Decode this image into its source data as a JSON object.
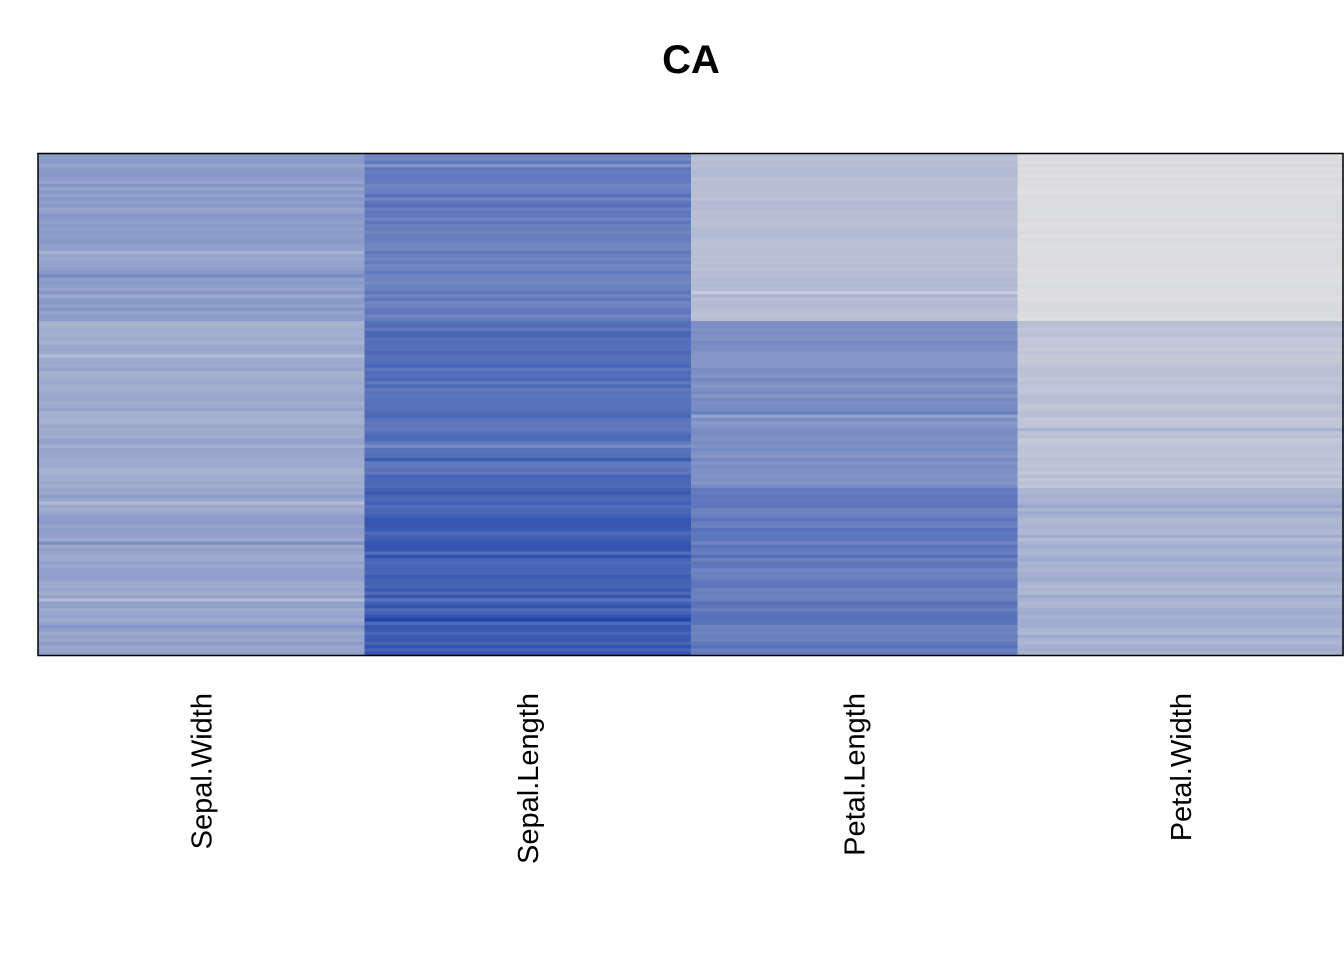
{
  "chart_data": {
    "type": "heatmap",
    "title": "CA",
    "columns": [
      "Sepal.Width",
      "Sepal.Length",
      "Petal.Length",
      "Petal.Width"
    ],
    "n_rows": 150,
    "color_low": "#e0e0e0",
    "color_high": "#1f44ab",
    "value_range": [
      0,
      1
    ],
    "column_profiles": [
      {
        "name": "Sepal.Width",
        "segments": [
          {
            "rows": [
              0,
              49
            ],
            "mean": 0.42,
            "jitter": 0.06
          },
          {
            "rows": [
              50,
              99
            ],
            "mean": 0.34,
            "jitter": 0.05
          },
          {
            "rows": [
              100,
              149
            ],
            "mean": 0.38,
            "jitter": 0.06
          }
        ]
      },
      {
        "name": "Sepal.Length",
        "segments": [
          {
            "rows": [
              0,
              49
            ],
            "mean": 0.62,
            "jitter": 0.06
          },
          {
            "rows": [
              50,
              99
            ],
            "mean": 0.72,
            "jitter": 0.07
          },
          {
            "rows": [
              100,
              149
            ],
            "mean": 0.82,
            "jitter": 0.09
          }
        ]
      },
      {
        "name": "Petal.Length",
        "segments": [
          {
            "rows": [
              0,
              49
            ],
            "mean": 0.22,
            "jitter": 0.03
          },
          {
            "rows": [
              50,
              99
            ],
            "mean": 0.52,
            "jitter": 0.05
          },
          {
            "rows": [
              100,
              149
            ],
            "mean": 0.65,
            "jitter": 0.07
          }
        ]
      },
      {
        "name": "Petal.Width",
        "segments": [
          {
            "rows": [
              0,
              49
            ],
            "mean": 0.02,
            "jitter": 0.015
          },
          {
            "rows": [
              50,
              99
            ],
            "mean": 0.18,
            "jitter": 0.04
          },
          {
            "rows": [
              100,
              149
            ],
            "mean": 0.3,
            "jitter": 0.05
          }
        ]
      }
    ]
  }
}
